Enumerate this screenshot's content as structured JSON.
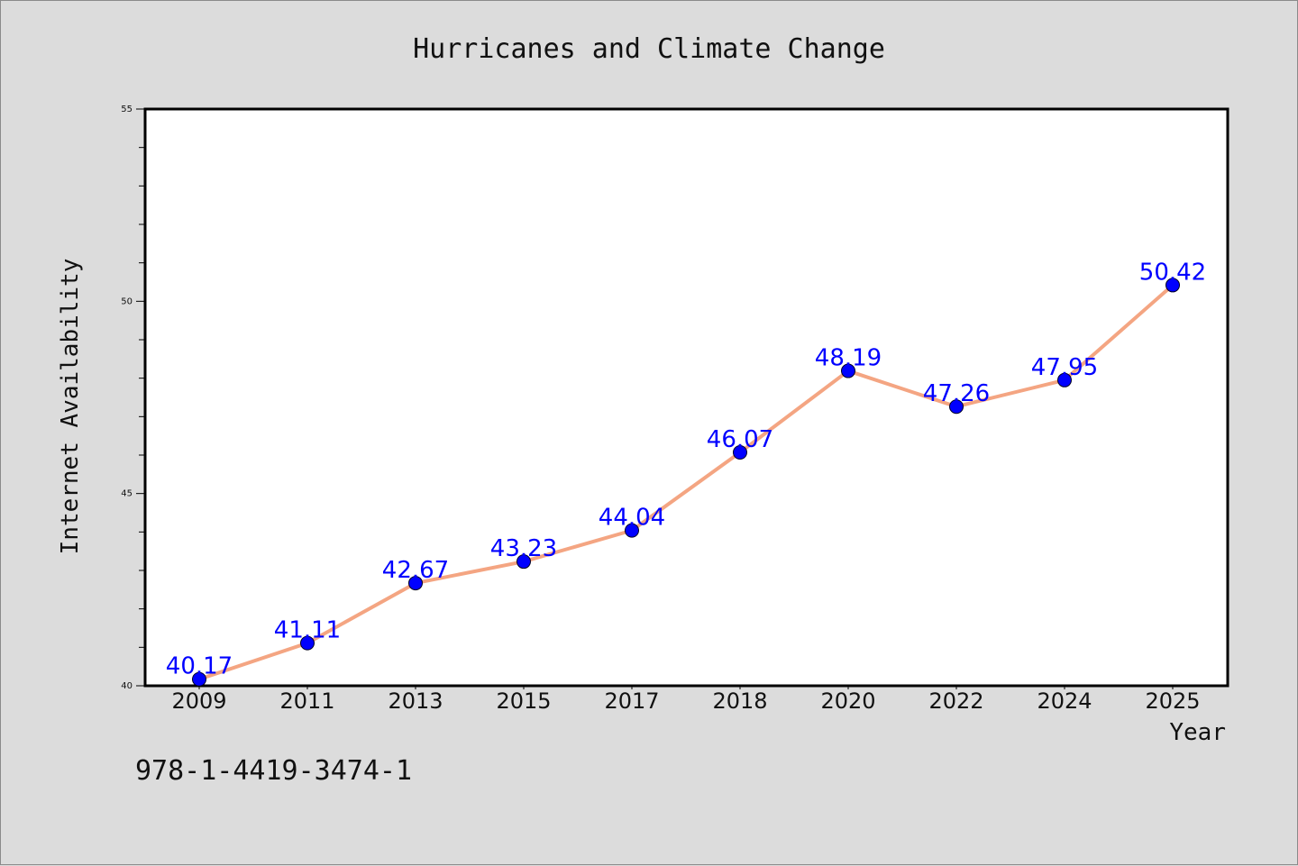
{
  "chart_data": {
    "type": "line",
    "title": "Hurricanes and Climate Change",
    "xlabel": "Year",
    "ylabel": "Internet Availability",
    "categories": [
      "2009",
      "2011",
      "2013",
      "2015",
      "2017",
      "2018",
      "2020",
      "2022",
      "2024",
      "2025"
    ],
    "series": [
      {
        "values": [
          40.17,
          41.11,
          42.67,
          43.23,
          44.04,
          46.07,
          48.19,
          47.26,
          47.95,
          50.42
        ],
        "line_color": "#f4a582",
        "marker_color": "#0000ff"
      }
    ],
    "data_labels": [
      "40.17",
      "41.11",
      "42.67",
      "43.23",
      "44.04",
      "46.07",
      "48.19",
      "47.26",
      "47.95",
      "50.42"
    ],
    "ylim": [
      40,
      55
    ],
    "yticks": [
      "40",
      "45",
      "50",
      "55"
    ],
    "grid": false,
    "legend": "none"
  },
  "footer": {
    "isbn": "978-1-4419-3474-1"
  }
}
